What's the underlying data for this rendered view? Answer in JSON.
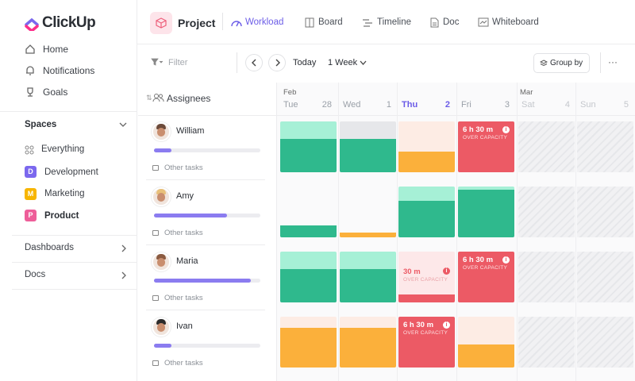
{
  "sidebar": {
    "logo": "ClickUp",
    "nav": [
      "Home",
      "Notifications",
      "Goals"
    ],
    "spaces_title": "Spaces",
    "spaces": [
      {
        "label": "Everything"
      },
      {
        "icon": "D",
        "label": "Development"
      },
      {
        "icon": "M",
        "label": "Marketing"
      },
      {
        "icon": "P",
        "label": "Product"
      }
    ],
    "sections": [
      "Dashboards",
      "Docs"
    ]
  },
  "header": {
    "title": "Project",
    "tabs": [
      "Workload",
      "Board",
      "Timeline",
      "Doc",
      "Whiteboard"
    ]
  },
  "toolbar": {
    "filter": "Filter",
    "today": "Today",
    "range": "1 Week",
    "group_by": "Group by",
    "more": "···"
  },
  "grid": {
    "assignees_label": "Assignees",
    "months": [
      "Feb",
      "Mar"
    ],
    "days": [
      {
        "name": "Tue",
        "date": "28"
      },
      {
        "name": "Wed",
        "date": "1"
      },
      {
        "name": "Thu",
        "date": "2"
      },
      {
        "name": "Fri",
        "date": "3"
      },
      {
        "name": "Sat",
        "date": "4"
      },
      {
        "name": "Sun",
        "date": "5"
      }
    ],
    "rows": [
      {
        "name": "William",
        "other_tasks": "Other tasks",
        "alerts": [
          {
            "time": "6 h 30 m",
            "label": "OVER CAPACITY"
          }
        ]
      },
      {
        "name": "Amy",
        "other_tasks": "Other tasks",
        "alerts": []
      },
      {
        "name": "Maria",
        "other_tasks": "Other tasks",
        "alerts": [
          {
            "time": "30 m",
            "label": "OVER CAPACITY"
          },
          {
            "time": "6 h 30 m",
            "label": "OVER CAPACITY"
          }
        ]
      },
      {
        "name": "Ivan",
        "other_tasks": "Other tasks",
        "alerts": [
          {
            "time": "6 h 30 m",
            "label": "OVER CAPACITY"
          }
        ]
      }
    ]
  }
}
